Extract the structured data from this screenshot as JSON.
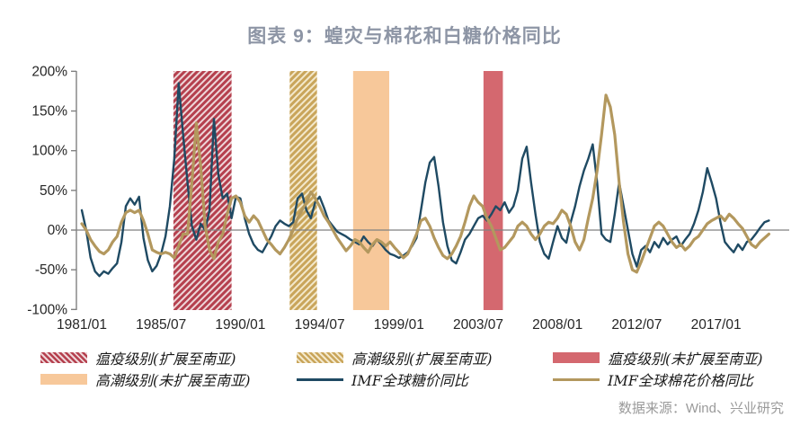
{
  "title": "图表 9：蝗灾与棉花和白糖价格同比",
  "source": "数据来源：Wind、兴业研究",
  "colors": {
    "sugar_line": "#1f4a63",
    "cotton_line": "#b3985e",
    "plague_hatch_stripe": "#b5404e",
    "plague_hatch_bg": "#eed6d9",
    "upsurge_hatch_stripe": "#c9a55a",
    "upsurge_hatch_bg": "#f3e8cb",
    "plague_solid": "#d4686f",
    "upsurge_solid": "#f7c89a",
    "axis": "#808080",
    "tick_text": "#262626",
    "title_text": "#8d95a5",
    "source_text": "#9a9a9a"
  },
  "legend": {
    "items": [
      {
        "label": "瘟疫级别(扩展至南亚)",
        "swatch": "hatch-plague"
      },
      {
        "label": "高潮级别(扩展至南亚)",
        "swatch": "hatch-upsurge"
      },
      {
        "label": "瘟疫级别(未扩展至南亚)",
        "swatch": "solid-plague"
      },
      {
        "label": "高潮级别(未扩展至南亚)",
        "swatch": "solid-upsurge"
      },
      {
        "label": "IMF全球糖价同比",
        "swatch": "line-sugar"
      },
      {
        "label": "IMF全球棉花价格同比",
        "swatch": "line-cotton"
      }
    ]
  },
  "chart_data": {
    "type": "line",
    "title": "图表 9：蝗灾与棉花和白糖价格同比",
    "xlabel": "",
    "ylabel": "",
    "ylim": [
      -100,
      200
    ],
    "xlim_years": [
      1981.0,
      2020.4
    ],
    "grid": false,
    "legend_position": "bottom",
    "y_ticks": [
      {
        "label": "200%",
        "value": 200
      },
      {
        "label": "150%",
        "value": 150
      },
      {
        "label": "100%",
        "value": 100
      },
      {
        "label": "50%",
        "value": 50
      },
      {
        "label": "0%",
        "value": 0
      },
      {
        "label": "-50%",
        "value": -50
      },
      {
        "label": "-100%",
        "value": -100
      }
    ],
    "x_ticks": [
      {
        "label": "1981/01",
        "year": 1981.0
      },
      {
        "label": "1985/07",
        "year": 1985.5
      },
      {
        "label": "1990/01",
        "year": 1990.0
      },
      {
        "label": "1994/07",
        "year": 1994.5
      },
      {
        "label": "1999/01",
        "year": 1999.0
      },
      {
        "label": "2003/07",
        "year": 2003.5
      },
      {
        "label": "2008/01",
        "year": 2008.0
      },
      {
        "label": "2012/07",
        "year": 2012.5
      },
      {
        "label": "2017/01",
        "year": 2017.0
      }
    ],
    "bands": [
      {
        "label": "瘟疫级别(扩展至南亚)",
        "style": "hatch_plague",
        "start_year": 1986.2,
        "end_year": 1989.5,
        "start_date": "1986/03",
        "end_date": "1989/06"
      },
      {
        "label": "高潮级别(扩展至南亚)",
        "style": "hatch_upsurge",
        "start_year": 1992.8,
        "end_year": 1994.35,
        "start_date": "1992/10",
        "end_date": "1994/05"
      },
      {
        "label": "高潮级别(未扩展至南亚)",
        "style": "solid_upsurge",
        "start_year": 1996.4,
        "end_year": 1998.45,
        "start_date": "1996/05",
        "end_date": "1998/06"
      },
      {
        "label": "瘟疫级别(未扩展至南亚)",
        "style": "solid_plague",
        "start_year": 2003.8,
        "end_year": 2004.9,
        "start_date": "2003/10",
        "end_date": "2004/11"
      }
    ],
    "series": [
      {
        "name": "IMF全球糖价同比",
        "color": "#1f4a63",
        "stroke_width": 2.4,
        "x_start": 1981.0,
        "x_step": 0.25,
        "unit": "%",
        "values": [
          25,
          0,
          -35,
          -52,
          -58,
          -52,
          -55,
          -48,
          -42,
          -15,
          30,
          40,
          32,
          42,
          -10,
          -38,
          -52,
          -45,
          -30,
          -8,
          30,
          90,
          185,
          120,
          60,
          5,
          -12,
          8,
          0,
          25,
          140,
          70,
          40,
          46,
          15,
          42,
          40,
          15,
          -5,
          -18,
          -25,
          -28,
          -18,
          -8,
          5,
          12,
          8,
          5,
          10,
          40,
          46,
          25,
          15,
          35,
          42,
          28,
          12,
          5,
          -2,
          -5,
          -8,
          -12,
          -15,
          -18,
          -8,
          -15,
          -20,
          -12,
          -18,
          -25,
          -30,
          -32,
          -35,
          -32,
          -28,
          -20,
          -10,
          25,
          60,
          85,
          92,
          55,
          10,
          -20,
          -38,
          -42,
          -28,
          -12,
          -5,
          5,
          15,
          18,
          12,
          20,
          30,
          25,
          35,
          22,
          30,
          50,
          90,
          105,
          60,
          20,
          -15,
          -30,
          -36,
          -15,
          5,
          -10,
          -16,
          10,
          30,
          55,
          75,
          90,
          108,
          60,
          -5,
          -12,
          -15,
          20,
          60,
          30,
          0,
          -30,
          -46,
          -25,
          -20,
          -28,
          -15,
          -22,
          -10,
          -18,
          -12,
          -8,
          -20,
          -12,
          -5,
          8,
          25,
          48,
          78,
          60,
          40,
          10,
          -15,
          -22,
          -28,
          -18,
          -25,
          -15,
          -12,
          -5,
          3,
          10,
          12
        ]
      },
      {
        "name": "IMF全球棉花价格同比",
        "color": "#b3985e",
        "stroke_width": 3.2,
        "x_start": 1981.0,
        "x_step": 0.25,
        "unit": "%",
        "values": [
          8,
          0,
          -12,
          -20,
          -27,
          -30,
          -25,
          -15,
          -8,
          10,
          22,
          25,
          22,
          25,
          12,
          -5,
          -25,
          -28,
          -30,
          -28,
          -30,
          -35,
          -20,
          -5,
          -5,
          60,
          135,
          80,
          5,
          -25,
          -36,
          -15,
          -5,
          20,
          40,
          43,
          35,
          18,
          10,
          18,
          12,
          0,
          -12,
          -18,
          -25,
          -30,
          -22,
          -12,
          0,
          15,
          25,
          35,
          48,
          40,
          30,
          18,
          10,
          0,
          -10,
          -18,
          -26,
          -20,
          -12,
          -15,
          -22,
          -28,
          -18,
          -12,
          -15,
          -20,
          -15,
          -22,
          -28,
          -35,
          -30,
          -18,
          -5,
          12,
          15,
          5,
          -10,
          -22,
          -32,
          -36,
          -30,
          -20,
          -8,
          10,
          30,
          43,
          35,
          30,
          15,
          5,
          -10,
          -25,
          -22,
          -15,
          -8,
          5,
          10,
          5,
          -5,
          -12,
          -5,
          5,
          10,
          8,
          15,
          25,
          20,
          5,
          -15,
          -25,
          -12,
          15,
          40,
          75,
          120,
          170,
          155,
          120,
          60,
          10,
          -30,
          -50,
          -53,
          -40,
          -25,
          -10,
          5,
          10,
          5,
          -5,
          -15,
          -22,
          -18,
          -25,
          -20,
          -12,
          -8,
          0,
          8,
          12,
          15,
          18,
          12,
          20,
          15,
          8,
          2,
          -8,
          -18,
          -22,
          -15,
          -10,
          -5
        ]
      }
    ]
  }
}
